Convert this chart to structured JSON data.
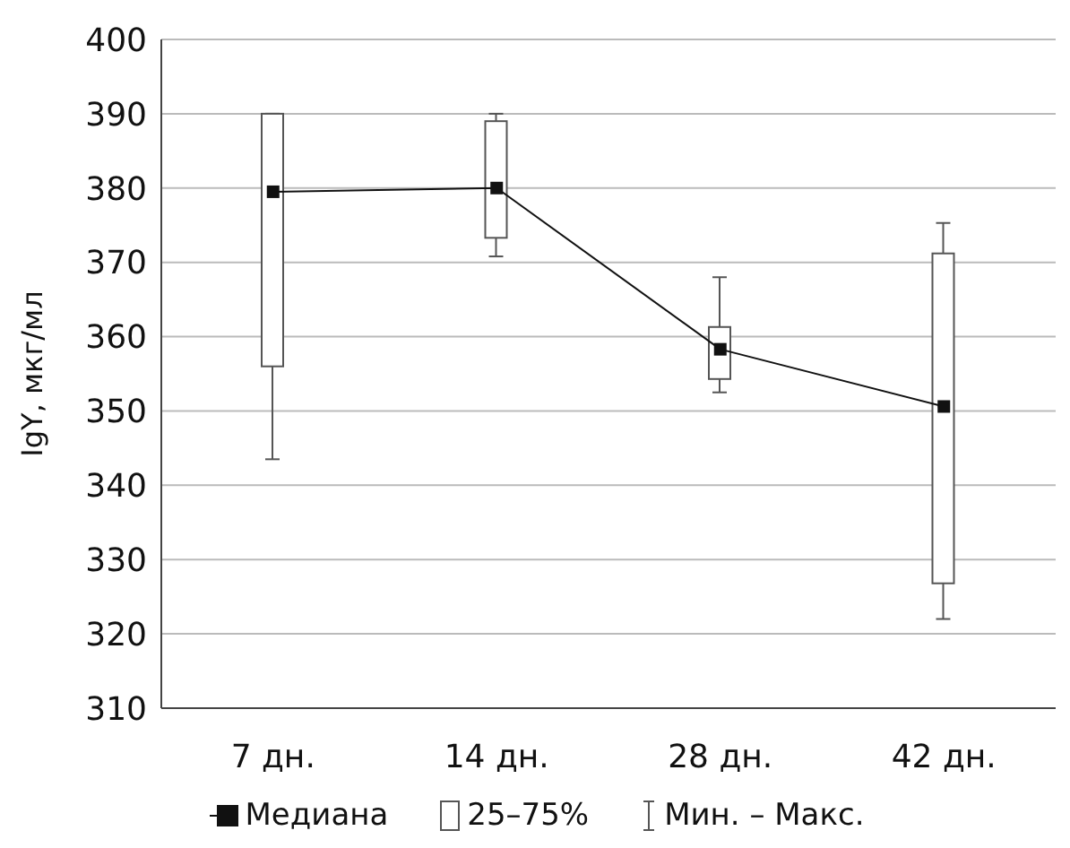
{
  "chart_data": {
    "type": "box",
    "ylabel": "IgY, мкг/мл",
    "categories": [
      "7 дн.",
      "14 дн.",
      "28 дн.",
      "42 дн."
    ],
    "ylim": [
      310,
      400
    ],
    "yticks": [
      310,
      320,
      330,
      340,
      350,
      360,
      370,
      380,
      390,
      400
    ],
    "grid": "y",
    "legend": "bottom",
    "series": [
      {
        "name": "Медиана",
        "type": "line",
        "color": "#111111",
        "marker": "square",
        "values": [
          379.5,
          380,
          358.3,
          350.6
        ]
      },
      {
        "name": "25–75%",
        "color": "#555555",
        "boxes": [
          {
            "low": 343.5,
            "q1": 356,
            "median": 379.5,
            "q3": 390,
            "high": 390
          },
          {
            "low": 370.8,
            "q1": 373.3,
            "median": 380,
            "q3": 389,
            "high": 390
          },
          {
            "low": 352.5,
            "q1": 354.3,
            "median": 358.3,
            "q3": 361.3,
            "high": 368
          },
          {
            "low": 322,
            "q1": 326.8,
            "median": 350.6,
            "q3": 371.2,
            "high": 375.3
          }
        ]
      }
    ],
    "annotations": [
      "Мин. – Макс."
    ]
  }
}
